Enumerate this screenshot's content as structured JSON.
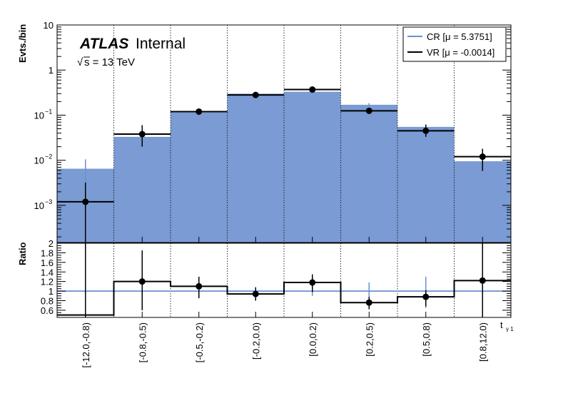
{
  "chart_data": {
    "type": "bar",
    "categories": [
      "[-12.0,-0.8)",
      "[-0.8,-0.5)",
      "[-0.5,-0.2)",
      "[-0.2,0.0)",
      "[0.0,0.2)",
      "[0.2,0.5)",
      "[0.5,0.8)",
      "[0.8,12.0)"
    ],
    "xlabel": "t",
    "xlabel_sub": "γ 1",
    "experiment": "ATLAS",
    "status": "Internal",
    "energy_label": "s = 13 TeV",
    "energy_sqrt": "√",
    "main": {
      "ylabel": "Evts./bin",
      "yscale": "log",
      "ylim": [
        0.00015,
        10
      ],
      "yticks": [
        {
          "value": 10,
          "base": "10",
          "exp": ""
        },
        {
          "value": 1,
          "base": "1",
          "exp": ""
        },
        {
          "value": 0.1,
          "base": "10",
          "exp": "−1"
        },
        {
          "value": 0.01,
          "base": "10",
          "exp": "−2"
        },
        {
          "value": 0.001,
          "base": "10",
          "exp": "−3"
        }
      ],
      "series": [
        {
          "name": "CR [μ = 5.3751]",
          "style": "filled-histogram",
          "values": [
            0.0065,
            0.033,
            0.115,
            0.3,
            0.33,
            0.17,
            0.055,
            0.0095
          ],
          "err_up": [
            0.0105,
            0.041,
            0.125,
            0.32,
            0.345,
            0.185,
            0.062,
            0.0125
          ],
          "err_down": [
            0.003,
            0.026,
            0.105,
            0.285,
            0.315,
            0.155,
            0.048,
            0.007
          ]
        },
        {
          "name": "VR [μ = -0.0014]",
          "style": "points-with-errors",
          "values": [
            0.0012,
            0.038,
            0.12,
            0.28,
            0.37,
            0.125,
            0.045,
            0.012
          ],
          "err_up": [
            0.0032,
            0.06,
            0.135,
            0.3,
            0.395,
            0.135,
            0.062,
            0.018
          ],
          "err_down": [
            0.00015,
            0.02,
            0.107,
            0.262,
            0.346,
            0.115,
            0.033,
            0.0058
          ]
        }
      ]
    },
    "ratio": {
      "ylabel": "Ratio",
      "ylim": [
        0.45,
        2.0
      ],
      "yticks": [
        "2",
        "1.8",
        "1.6",
        "1.4",
        "1.2",
        "1",
        "0.8",
        "0.6"
      ],
      "ytick_values": [
        2.0,
        1.8,
        1.6,
        1.4,
        1.2,
        1.0,
        0.8,
        0.6
      ],
      "reference": 1.0,
      "values": [
        0.5,
        1.2,
        1.1,
        0.94,
        1.18,
        0.76,
        0.88,
        1.22
      ],
      "err_up": [
        2.0,
        1.85,
        1.3,
        1.08,
        1.35,
        0.88,
        1.02,
        2.0
      ],
      "err_down": [
        0.45,
        0.6,
        0.85,
        0.8,
        0.98,
        0.62,
        0.68,
        0.45
      ],
      "cr_err_up": [
        2.0,
        1.22,
        1.12,
        1.05,
        1.08,
        1.18,
        1.3,
        1.08
      ],
      "cr_err_down": [
        0.45,
        0.88,
        0.9,
        0.92,
        0.9,
        0.8,
        0.65,
        0.9
      ]
    },
    "legend_position": "top-right",
    "colors": {
      "fill": "#7a9bd3",
      "cr_line": "#6b8fd0",
      "vr": "#000000",
      "grid": "#000000"
    }
  }
}
